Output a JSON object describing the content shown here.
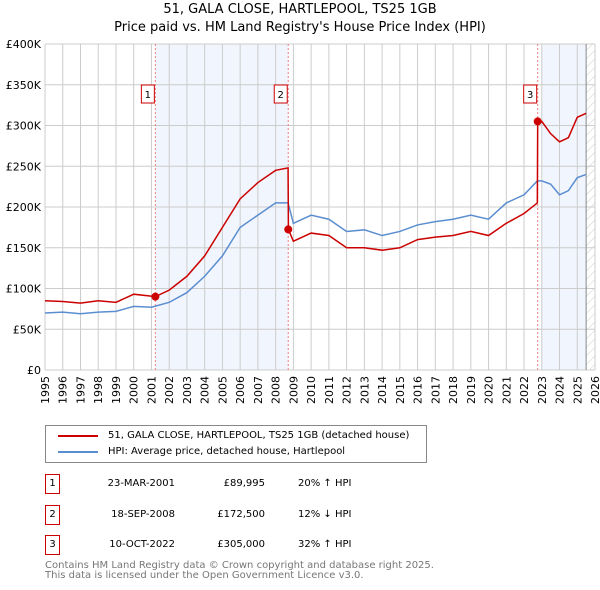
{
  "chart_data": {
    "type": "line",
    "title": "51, GALA CLOSE, HARTLEPOOL, TS25 1GB",
    "subtitle": "Price paid vs. HM Land Registry's House Price Index (HPI)",
    "xlim": [
      1995,
      2026
    ],
    "ylim": [
      0,
      400000
    ],
    "yticks": [
      {
        "v": 0,
        "l": "£0"
      },
      {
        "v": 50000,
        "l": "£50K"
      },
      {
        "v": 100000,
        "l": "£100K"
      },
      {
        "v": 150000,
        "l": "£150K"
      },
      {
        "v": 200000,
        "l": "£200K"
      },
      {
        "v": 250000,
        "l": "£250K"
      },
      {
        "v": 300000,
        "l": "£300K"
      },
      {
        "v": 350000,
        "l": "£350K"
      },
      {
        "v": 400000,
        "l": "£400K"
      }
    ],
    "xticks": [
      "1995",
      "1996",
      "1997",
      "1998",
      "1999",
      "2000",
      "2001",
      "2002",
      "2003",
      "2004",
      "2005",
      "2006",
      "2007",
      "2008",
      "2009",
      "2010",
      "2011",
      "2012",
      "2013",
      "2014",
      "2015",
      "2016",
      "2017",
      "2018",
      "2019",
      "2020",
      "2021",
      "2022",
      "2023",
      "2024",
      "2025",
      "2026"
    ],
    "grid": true,
    "shaded_ranges": [
      [
        2001.22,
        2008.71
      ],
      [
        2023.0,
        2025.5
      ]
    ],
    "data_end": 2025.5,
    "series": [
      {
        "name": "51, GALA CLOSE, HARTLEPOOL, TS25 1GB (detached house)",
        "color": "#cc0000",
        "x": [
          1995,
          1996,
          1997,
          1998,
          1999,
          2000,
          2001.22,
          2002,
          2003,
          2004,
          2005,
          2006,
          2007,
          2008,
          2008.7,
          2008.72,
          2009,
          2010,
          2011,
          2012,
          2013,
          2014,
          2015,
          2016,
          2017,
          2018,
          2019,
          2020,
          2021,
          2022,
          2022.75,
          2022.77,
          2023,
          2023.5,
          2024,
          2024.5,
          2025,
          2025.5
        ],
        "y": [
          85000,
          84000,
          82000,
          85000,
          83000,
          93000,
          89995,
          98000,
          115000,
          140000,
          175000,
          210000,
          230000,
          245000,
          248000,
          172500,
          158000,
          168000,
          165000,
          150000,
          150000,
          147000,
          150000,
          160000,
          163000,
          165000,
          170000,
          165000,
          180000,
          192000,
          205000,
          305000,
          305000,
          290000,
          280000,
          285000,
          310000,
          315000
        ]
      },
      {
        "name": "HPI: Average price, detached house, Hartlepool",
        "color": "#5b8ed0",
        "x": [
          1995,
          1996,
          1997,
          1998,
          1999,
          2000,
          2001,
          2002,
          2003,
          2004,
          2005,
          2006,
          2007,
          2008,
          2008.7,
          2009,
          2010,
          2011,
          2012,
          2013,
          2014,
          2015,
          2016,
          2017,
          2018,
          2019,
          2020,
          2021,
          2022,
          2022.75,
          2023,
          2023.5,
          2024,
          2024.5,
          2025,
          2025.5
        ],
        "y": [
          70000,
          71000,
          69000,
          71000,
          72000,
          78000,
          77000,
          83000,
          95000,
          115000,
          140000,
          175000,
          190000,
          205000,
          205000,
          180000,
          190000,
          185000,
          170000,
          172000,
          165000,
          170000,
          178000,
          182000,
          185000,
          190000,
          185000,
          205000,
          215000,
          232000,
          232000,
          228000,
          215000,
          220000,
          236000,
          240000
        ]
      }
    ],
    "sales": [
      {
        "label": "1",
        "x": 2001.22,
        "y": 89995
      },
      {
        "label": "2",
        "x": 2008.71,
        "y": 172500
      },
      {
        "label": "3",
        "x": 2022.77,
        "y": 305000
      }
    ]
  },
  "legend": {
    "property": "51, GALA CLOSE, HARTLEPOOL, TS25 1GB (detached house)",
    "hpi": "HPI: Average price, detached house, Hartlepool"
  },
  "transactions": [
    {
      "num": "1",
      "date": "23-MAR-2001",
      "price": "£89,995",
      "hpi": "20% ↑ HPI"
    },
    {
      "num": "2",
      "date": "18-SEP-2008",
      "price": "£172,500",
      "hpi": "12% ↓ HPI"
    },
    {
      "num": "3",
      "date": "10-OCT-2022",
      "price": "£305,000",
      "hpi": "32% ↑ HPI"
    }
  ],
  "footer": {
    "line1": "Contains HM Land Registry data © Crown copyright and database right 2025.",
    "line2": "This data is licensed under the Open Government Licence v3.0."
  }
}
